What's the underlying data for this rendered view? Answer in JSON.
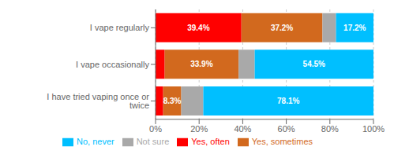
{
  "chart_data": {
    "type": "bar",
    "orientation": "horizontal",
    "stacked": true,
    "categories": [
      "I vape regularly",
      "I vape occasionally",
      "I have tried vaping once or twice"
    ],
    "series": [
      {
        "name": "Yes, often",
        "color": "#FF0000",
        "values": [
          39.4,
          4.2,
          3.5
        ],
        "value_labels": [
          "39.4%",
          null,
          null
        ]
      },
      {
        "name": "Yes, sometimes",
        "color": "#D2691E",
        "values": [
          37.2,
          33.9,
          8.3
        ],
        "value_labels": [
          "37.2%",
          "33.9%",
          "8.3%"
        ]
      },
      {
        "name": "Not sure",
        "color": "#A9A9A9",
        "values": [
          6.2,
          7.4,
          10.1
        ],
        "value_labels": [
          null,
          null,
          null
        ]
      },
      {
        "name": "No, never",
        "color": "#00BFFF",
        "values": [
          17.2,
          54.5,
          78.1
        ],
        "value_labels": [
          "17.2%",
          "54.5%",
          "78.1%"
        ]
      }
    ],
    "xlim": [
      0,
      100
    ],
    "xticks": [
      {
        "value": 0,
        "label": "0%"
      },
      {
        "value": 20,
        "label": "20%"
      },
      {
        "value": 40,
        "label": "40%"
      },
      {
        "value": 60,
        "label": "60%"
      },
      {
        "value": 80,
        "label": "80%"
      },
      {
        "value": 100,
        "label": "100%"
      }
    ],
    "grid": true,
    "data_labels": true,
    "legend": "bottom"
  }
}
